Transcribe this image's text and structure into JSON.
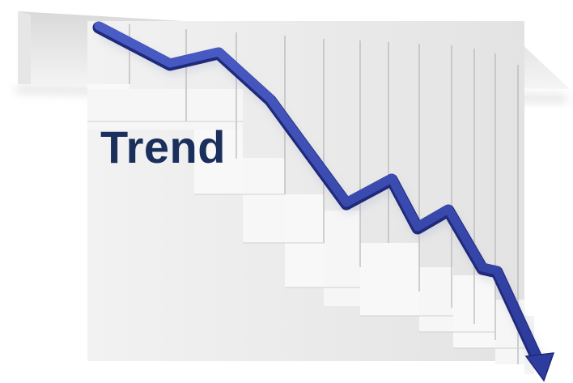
{
  "headline": {
    "text": "Trend"
  },
  "colors": {
    "headline": "#1b2f5c",
    "arrow": "#3a4bb0",
    "arrow_shadow": "#1f2a78",
    "stair_face": "#ececec",
    "stair_side": "#f7f7f7",
    "stair_edge": "#b9b9b9",
    "background": "#ffffff"
  },
  "icons": {
    "arrow": "downward-trend-arrow-icon",
    "stairs": "descending-staircase-graphic"
  }
}
